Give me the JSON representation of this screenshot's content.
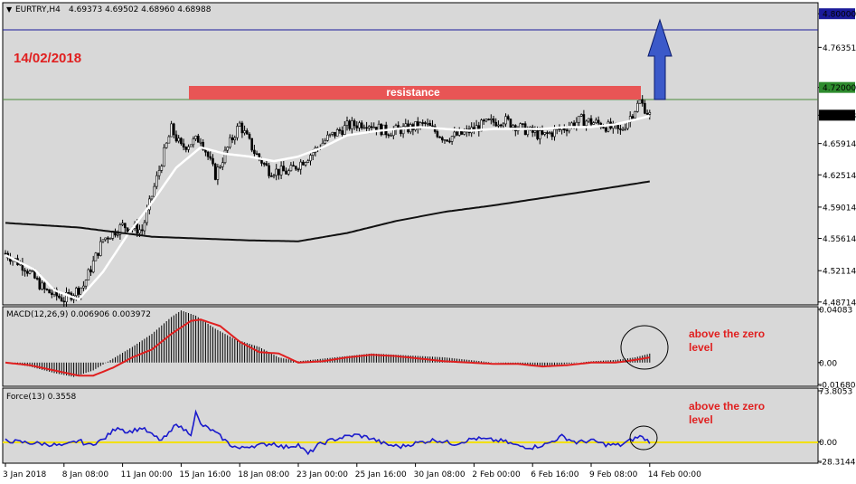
{
  "header": {
    "symbol": "EURTRY,H4",
    "ohlc": "4.69373 4.69502 4.68960 4.68988"
  },
  "annotations": {
    "date": "14/02/2018",
    "resistance": "resistance",
    "macd_note_line1": "above the zero",
    "macd_note_line2": "level",
    "force_note_line1": "above the zero",
    "force_note_line2": "level"
  },
  "colors": {
    "background": "#ffffff",
    "plot_bg": "#d8d8d8",
    "resistance_box": "#e85555",
    "blue_line": "#1a1a9a",
    "green_line": "#4a8a3a",
    "arrow": "#3b59c9",
    "macd_signal": "#e02020",
    "force_line": "#1a1acc",
    "force_zero": "#f2e000",
    "note_red": "#e02020",
    "price_label_green": "#2e8b2e"
  },
  "chart_data": [
    {
      "type": "candlestick",
      "name": "price",
      "y_ticks": [
        "4.80000",
        "4.76351",
        "4.72000",
        "4.68988",
        "4.65914",
        "4.62514",
        "4.59014",
        "4.55614",
        "4.52114",
        "4.48714"
      ],
      "ylim": [
        4.485,
        4.81
      ],
      "horizontal_levels": [
        {
          "label": "4.80000",
          "value": 4.8,
          "color": "blue"
        },
        {
          "label": "4.72000",
          "value": 4.72,
          "color": "green"
        }
      ],
      "current_price": "4.68988",
      "anchors_close": [
        [
          0,
          4.54
        ],
        [
          8,
          4.525
        ],
        [
          16,
          4.5
        ],
        [
          24,
          4.49
        ],
        [
          32,
          4.505
        ],
        [
          40,
          4.555
        ],
        [
          48,
          4.57
        ],
        [
          56,
          4.565
        ],
        [
          64,
          4.64
        ],
        [
          68,
          4.675
        ],
        [
          72,
          4.655
        ],
        [
          80,
          4.665
        ],
        [
          86,
          4.625
        ],
        [
          92,
          4.66
        ],
        [
          96,
          4.68
        ],
        [
          102,
          4.65
        ],
        [
          108,
          4.63
        ],
        [
          116,
          4.628
        ],
        [
          124,
          4.645
        ],
        [
          132,
          4.665
        ],
        [
          140,
          4.678
        ],
        [
          148,
          4.682
        ],
        [
          156,
          4.672
        ],
        [
          164,
          4.675
        ],
        [
          172,
          4.68
        ],
        [
          180,
          4.665
        ],
        [
          188,
          4.67
        ],
        [
          196,
          4.68
        ],
        [
          204,
          4.685
        ],
        [
          212,
          4.675
        ],
        [
          220,
          4.667
        ],
        [
          228,
          4.675
        ],
        [
          236,
          4.685
        ],
        [
          244,
          4.68
        ],
        [
          252,
          4.672
        ],
        [
          260,
          4.705
        ],
        [
          264,
          4.69
        ]
      ],
      "ma_fast_anchors": [
        [
          0,
          4.538
        ],
        [
          12,
          4.522
        ],
        [
          20,
          4.5
        ],
        [
          30,
          4.49
        ],
        [
          40,
          4.52
        ],
        [
          50,
          4.56
        ],
        [
          60,
          4.595
        ],
        [
          70,
          4.633
        ],
        [
          80,
          4.655
        ],
        [
          90,
          4.648
        ],
        [
          100,
          4.645
        ],
        [
          110,
          4.64
        ],
        [
          120,
          4.645
        ],
        [
          130,
          4.655
        ],
        [
          140,
          4.668
        ],
        [
          150,
          4.672
        ],
        [
          160,
          4.675
        ],
        [
          170,
          4.677
        ],
        [
          180,
          4.675
        ],
        [
          190,
          4.673
        ],
        [
          200,
          4.675
        ],
        [
          210,
          4.675
        ],
        [
          220,
          4.675
        ],
        [
          230,
          4.677
        ],
        [
          240,
          4.677
        ],
        [
          250,
          4.68
        ],
        [
          258,
          4.685
        ],
        [
          264,
          4.689
        ]
      ],
      "ma_slow_anchors": [
        [
          0,
          4.573
        ],
        [
          30,
          4.568
        ],
        [
          60,
          4.558
        ],
        [
          80,
          4.556
        ],
        [
          100,
          4.554
        ],
        [
          120,
          4.553
        ],
        [
          140,
          4.562
        ],
        [
          160,
          4.575
        ],
        [
          180,
          4.585
        ],
        [
          200,
          4.592
        ],
        [
          220,
          4.6
        ],
        [
          240,
          4.608
        ],
        [
          264,
          4.618
        ]
      ],
      "candle_count": 265,
      "x_ticks": [
        "3 Jan 2018",
        "8 Jan 08:00",
        "11 Jan 00:00",
        "15 Jan 16:00",
        "18 Jan 08:00",
        "23 Jan 00:00",
        "25 Jan 16:00",
        "30 Jan 08:00",
        "2 Feb 00:00",
        "6 Feb 16:00",
        "9 Feb 08:00",
        "14 Feb 00:00"
      ],
      "x_tick_index": [
        0,
        24,
        48,
        72,
        96,
        120,
        144,
        168,
        192,
        216,
        240,
        264
      ]
    },
    {
      "type": "bar",
      "name": "macd",
      "label": "MACD(12,26,9) 0.006906 0.003972",
      "y_ticks": [
        "0.04083",
        "0.00",
        "-0.016804"
      ],
      "ylim": [
        -0.0168,
        0.0408
      ],
      "histogram_anchors": [
        [
          0,
          0.0
        ],
        [
          10,
          -0.003
        ],
        [
          20,
          -0.008
        ],
        [
          28,
          -0.011
        ],
        [
          36,
          -0.006
        ],
        [
          44,
          0.003
        ],
        [
          52,
          0.012
        ],
        [
          60,
          0.022
        ],
        [
          68,
          0.035
        ],
        [
          72,
          0.04
        ],
        [
          78,
          0.036
        ],
        [
          86,
          0.026
        ],
        [
          94,
          0.018
        ],
        [
          104,
          0.012
        ],
        [
          112,
          0.004
        ],
        [
          120,
          0.001
        ],
        [
          130,
          0.003
        ],
        [
          140,
          0.005
        ],
        [
          150,
          0.007
        ],
        [
          160,
          0.006
        ],
        [
          170,
          0.005
        ],
        [
          180,
          0.004
        ],
        [
          190,
          0.002
        ],
        [
          200,
          0.0
        ],
        [
          210,
          -0.001
        ],
        [
          220,
          -0.003
        ],
        [
          230,
          -0.001
        ],
        [
          240,
          0.001
        ],
        [
          250,
          0.002
        ],
        [
          258,
          0.004
        ],
        [
          264,
          0.0069
        ]
      ],
      "signal_anchors": [
        [
          0,
          0.0
        ],
        [
          10,
          -0.002
        ],
        [
          20,
          -0.006
        ],
        [
          30,
          -0.01
        ],
        [
          36,
          -0.01
        ],
        [
          44,
          -0.004
        ],
        [
          52,
          0.004
        ],
        [
          60,
          0.01
        ],
        [
          68,
          0.022
        ],
        [
          76,
          0.032
        ],
        [
          80,
          0.033
        ],
        [
          88,
          0.028
        ],
        [
          96,
          0.016
        ],
        [
          104,
          0.008
        ],
        [
          112,
          0.007
        ],
        [
          120,
          0.0
        ],
        [
          130,
          0.001
        ],
        [
          140,
          0.004
        ],
        [
          150,
          0.006
        ],
        [
          160,
          0.005
        ],
        [
          170,
          0.003
        ],
        [
          180,
          0.001
        ],
        [
          190,
          0.0
        ],
        [
          200,
          -0.001
        ],
        [
          210,
          -0.001
        ],
        [
          220,
          -0.003
        ],
        [
          230,
          -0.002
        ],
        [
          240,
          0.0
        ],
        [
          250,
          0.0
        ],
        [
          258,
          0.002
        ],
        [
          264,
          0.00397
        ]
      ]
    },
    {
      "type": "line",
      "name": "force",
      "label": "Force(13) 0.3558",
      "y_ticks": [
        "73.8053",
        "0.00",
        "-28.3144"
      ],
      "ylim": [
        -28.3144,
        73.8053
      ],
      "anchors": [
        [
          0,
          2
        ],
        [
          8,
          -1
        ],
        [
          16,
          -3
        ],
        [
          24,
          -6
        ],
        [
          30,
          2
        ],
        [
          34,
          -5
        ],
        [
          40,
          3
        ],
        [
          46,
          22
        ],
        [
          50,
          14
        ],
        [
          56,
          20
        ],
        [
          60,
          10
        ],
        [
          64,
          2
        ],
        [
          68,
          15
        ],
        [
          70,
          28
        ],
        [
          72,
          20
        ],
        [
          76,
          12
        ],
        [
          78,
          42
        ],
        [
          80,
          25
        ],
        [
          84,
          18
        ],
        [
          88,
          8
        ],
        [
          92,
          -4
        ],
        [
          96,
          -10
        ],
        [
          100,
          -6
        ],
        [
          104,
          -5
        ],
        [
          110,
          -2
        ],
        [
          114,
          -8
        ],
        [
          120,
          -4
        ],
        [
          124,
          -18
        ],
        [
          128,
          -5
        ],
        [
          134,
          3
        ],
        [
          140,
          8
        ],
        [
          144,
          10
        ],
        [
          150,
          5
        ],
        [
          156,
          -4
        ],
        [
          162,
          -7
        ],
        [
          168,
          -2
        ],
        [
          176,
          3
        ],
        [
          184,
          -3
        ],
        [
          192,
          5
        ],
        [
          198,
          3
        ],
        [
          204,
          1
        ],
        [
          210,
          -6
        ],
        [
          216,
          -8
        ],
        [
          222,
          -3
        ],
        [
          228,
          8
        ],
        [
          234,
          -1
        ],
        [
          240,
          2
        ],
        [
          246,
          -4
        ],
        [
          252,
          -5
        ],
        [
          256,
          2
        ],
        [
          260,
          8
        ],
        [
          264,
          0.36
        ]
      ]
    }
  ]
}
